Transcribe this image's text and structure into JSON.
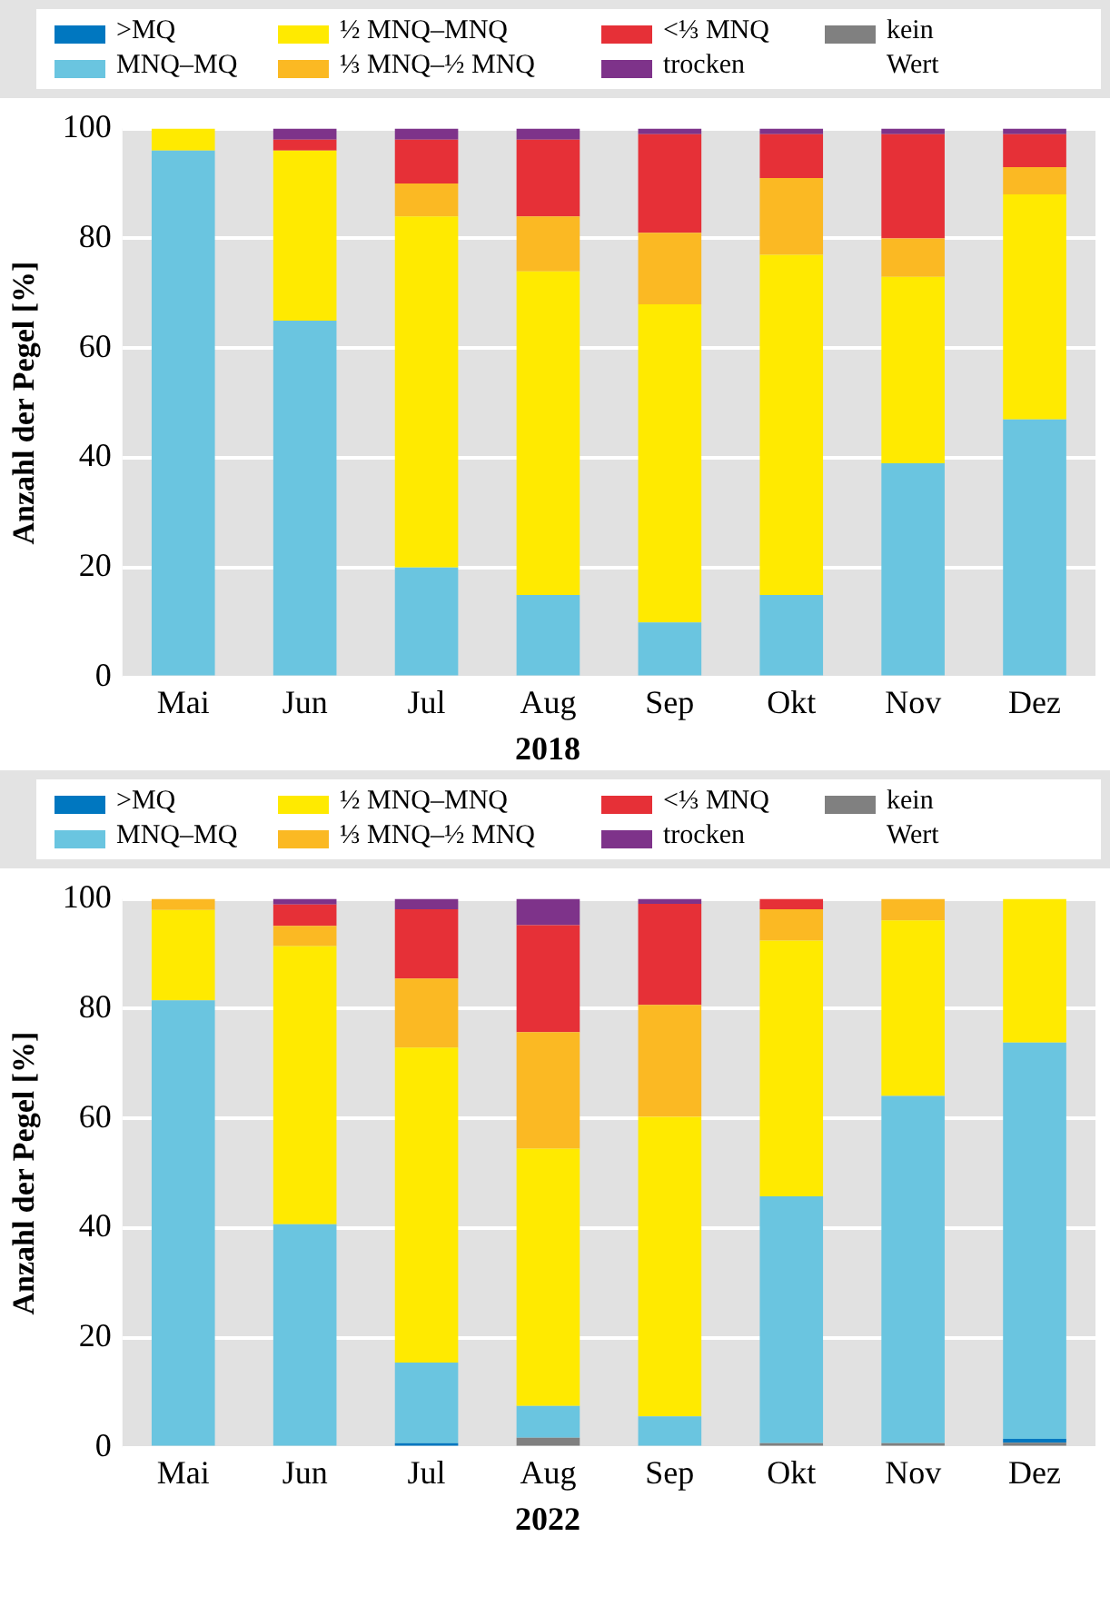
{
  "chart_data": [
    {
      "type": "bar",
      "title": "2018",
      "ylabel": "Anzahl der Pegel [%]",
      "stacked": true,
      "legend": "top",
      "grid": "y",
      "categories": [
        "Mai",
        "Jun",
        "Jul",
        "Aug",
        "Sep",
        "Okt",
        "Nov",
        "Dez"
      ],
      "ylim": [
        0,
        100
      ],
      "yticks": [
        0,
        20,
        40,
        60,
        80,
        100
      ],
      "series": [
        {
          "name": "kein Wert",
          "color": "#808080",
          "values": [
            0,
            0,
            0,
            0,
            0,
            0,
            0,
            0
          ]
        },
        {
          "name": ">MQ",
          "color": "#0077c0",
          "values": [
            0,
            0,
            0,
            0,
            0,
            0,
            0,
            0
          ]
        },
        {
          "name": "MNQ–MQ",
          "color": "#6ac5e0",
          "values": [
            96,
            65,
            20,
            15,
            10,
            15,
            39,
            47
          ]
        },
        {
          "name": "½ MNQ–MNQ",
          "color": "#ffea00",
          "values": [
            4,
            31,
            64,
            59,
            58,
            62,
            34,
            41
          ]
        },
        {
          "name": "⅓ MNQ–½ MNQ",
          "color": "#fbb923",
          "values": [
            0,
            0,
            6,
            10,
            13,
            14,
            7,
            5
          ]
        },
        {
          "name": "<⅓ MNQ",
          "color": "#e63037",
          "values": [
            0,
            2,
            8,
            14,
            18,
            8,
            19,
            6
          ]
        },
        {
          "name": "trocken",
          "color": "#7e338a",
          "values": [
            0,
            2,
            2,
            2,
            1,
            1,
            1,
            1
          ]
        }
      ]
    },
    {
      "type": "bar",
      "title": "2022",
      "ylabel": "Anzahl der Pegel [%]",
      "stacked": true,
      "legend": "top",
      "grid": "y",
      "categories": [
        "Mai",
        "Jun",
        "Jul",
        "Aug",
        "Sep",
        "Okt",
        "Nov",
        "Dez"
      ],
      "ylim": [
        0,
        100
      ],
      "yticks": [
        0,
        20,
        40,
        60,
        80,
        100
      ],
      "series": [
        {
          "name": "kein Wert",
          "color": "#808080",
          "values": [
            0,
            0,
            0,
            1.8,
            0,
            0.8,
            0.8,
            0.9
          ]
        },
        {
          "name": ">MQ",
          "color": "#0077c0",
          "values": [
            0,
            0,
            0.8,
            0,
            0,
            0,
            0,
            0.7
          ]
        },
        {
          "name": "MNQ–MQ",
          "color": "#6ac5e0",
          "values": [
            81.5,
            40.7,
            14.7,
            5.8,
            5.7,
            45.0,
            63.3,
            72.2
          ]
        },
        {
          "name": "½ MNQ–MNQ",
          "color": "#ffea00",
          "values": [
            16.5,
            50.7,
            57.4,
            46.9,
            54.6,
            46.6,
            32.0,
            26.2
          ]
        },
        {
          "name": "⅓ MNQ–½ MNQ",
          "color": "#fbb923",
          "values": [
            2,
            3.7,
            12.6,
            21.2,
            20.4,
            5.7,
            3.9,
            0
          ]
        },
        {
          "name": "<⅓ MNQ",
          "color": "#e63037",
          "values": [
            0,
            3.9,
            12.6,
            19.5,
            18.4,
            1.9,
            0,
            0
          ]
        },
        {
          "name": "trocken",
          "color": "#7e338a",
          "values": [
            0,
            1.0,
            1.9,
            4.8,
            0.9,
            0,
            0,
            0
          ]
        }
      ]
    }
  ]
}
